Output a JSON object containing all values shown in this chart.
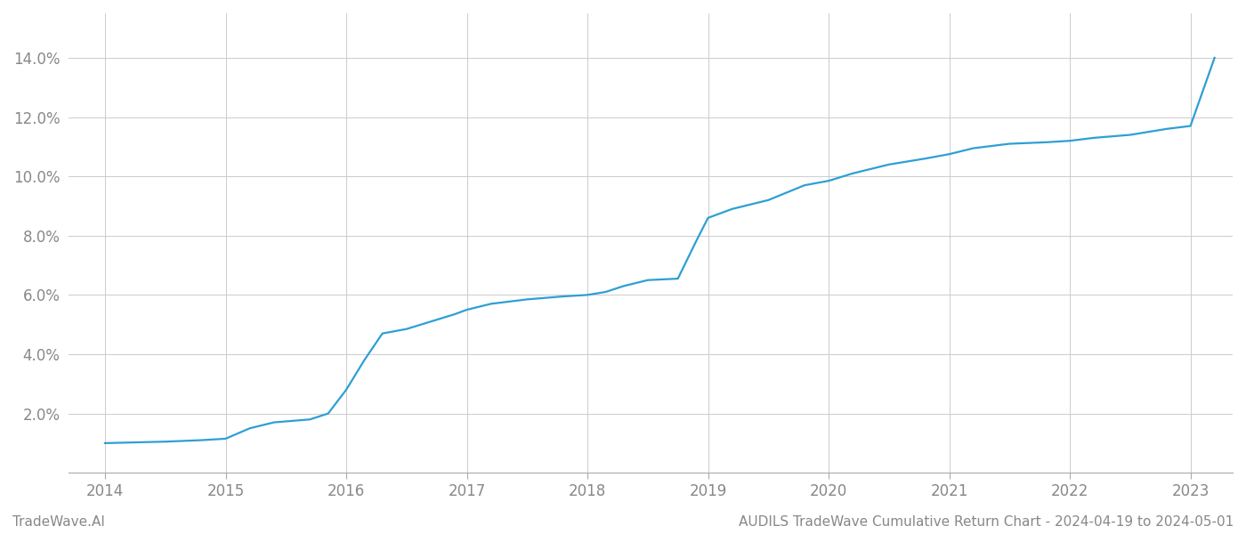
{
  "title": "AUDILS TradeWave Cumulative Return Chart - 2024-04-19 to 2024-05-01",
  "watermark": "TradeWave.AI",
  "line_color": "#2e9fd4",
  "background_color": "#ffffff",
  "grid_color": "#cccccc",
  "x_years": [
    2014,
    2015,
    2016,
    2017,
    2018,
    2019,
    2020,
    2021,
    2022,
    2023
  ],
  "x_data": [
    2014.0,
    2014.2,
    2014.5,
    2014.8,
    2015.0,
    2015.2,
    2015.4,
    2015.55,
    2015.7,
    2015.85,
    2016.0,
    2016.15,
    2016.3,
    2016.5,
    2016.7,
    2016.9,
    2017.0,
    2017.2,
    2017.5,
    2017.8,
    2018.0,
    2018.15,
    2018.3,
    2018.5,
    2018.75,
    2018.9,
    2019.0,
    2019.2,
    2019.5,
    2019.8,
    2020.0,
    2020.2,
    2020.5,
    2020.8,
    2021.0,
    2021.2,
    2021.5,
    2021.8,
    2022.0,
    2022.2,
    2022.5,
    2022.65,
    2022.8,
    2023.0,
    2023.2
  ],
  "y_data": [
    1.0,
    1.02,
    1.05,
    1.1,
    1.15,
    1.5,
    1.7,
    1.75,
    1.8,
    2.0,
    2.8,
    3.8,
    4.7,
    4.85,
    5.1,
    5.35,
    5.5,
    5.7,
    5.85,
    5.95,
    6.0,
    6.1,
    6.3,
    6.5,
    6.55,
    7.8,
    8.6,
    8.9,
    9.2,
    9.7,
    9.85,
    10.1,
    10.4,
    10.6,
    10.75,
    10.95,
    11.1,
    11.15,
    11.2,
    11.3,
    11.4,
    11.5,
    11.6,
    11.7,
    14.0
  ],
  "ylim": [
    0,
    15.5
  ],
  "yticks": [
    2.0,
    4.0,
    6.0,
    8.0,
    10.0,
    12.0,
    14.0
  ],
  "xlim": [
    2013.7,
    2023.35
  ],
  "label_color": "#888888",
  "title_color": "#888888",
  "watermark_color": "#888888",
  "line_width": 1.6
}
